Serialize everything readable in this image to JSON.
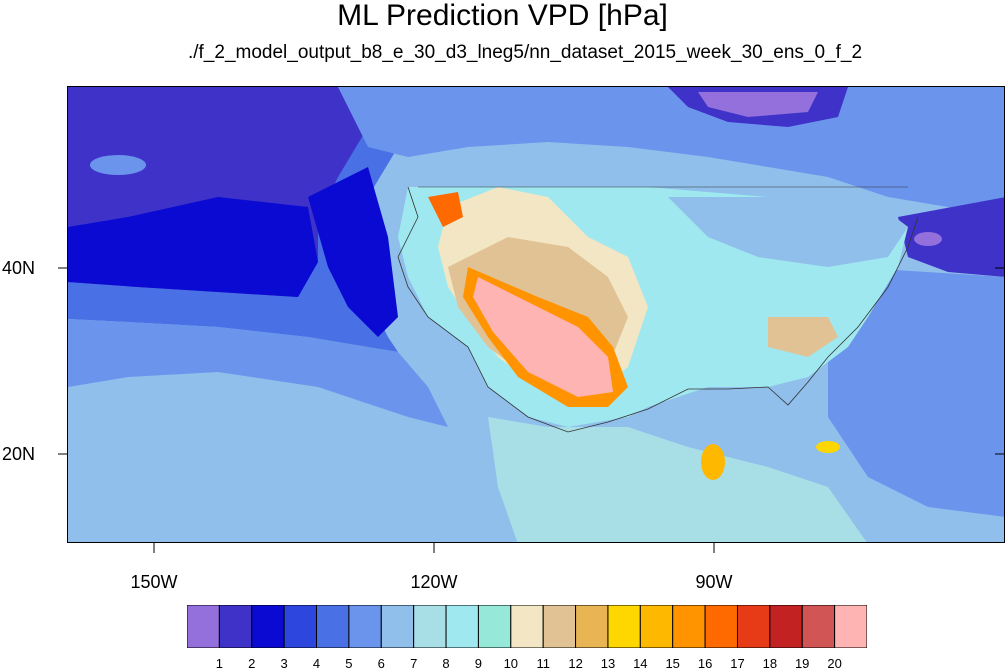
{
  "title": "ML Prediction VPD [hPa]",
  "subtitle": "./f_2_model_output_b8_e_30_d3_lneg5/nn_dataset_2015_week_30_ens_0_f_2",
  "lat_labels": [
    "40N",
    "20N"
  ],
  "lon_labels": [
    "150W",
    "120W",
    "90W"
  ],
  "colorbar": {
    "labels": [
      "1",
      "2",
      "3",
      "4",
      "5",
      "6",
      "7",
      "8",
      "9",
      "10",
      "11",
      "12",
      "13",
      "14",
      "15",
      "16",
      "17",
      "18",
      "19",
      "20"
    ],
    "colors": [
      "#9370db",
      "#3e32c8",
      "#0a0ad2",
      "#2d46de",
      "#4a70e6",
      "#6b94ec",
      "#8fbfea",
      "#a8dfe6",
      "#9fe8ef",
      "#96e8d8",
      "#f2e6c4",
      "#e0c295",
      "#e8b454",
      "#ffd700",
      "#ffb800",
      "#ff9400",
      "#ff6a00",
      "#e73a17",
      "#c32222",
      "#d25555",
      "#ffb4b4"
    ]
  }
}
